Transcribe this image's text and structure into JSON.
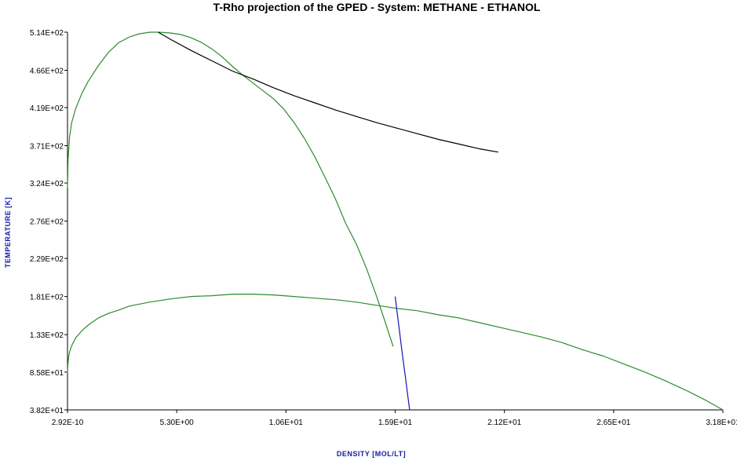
{
  "chart_data": {
    "type": "line",
    "title": "T-Rho projection of the GPED - System: METHANE - ETHANOL",
    "xlabel": "DENSITY [MOL/LT]",
    "ylabel": "TEMPERATURE [K]",
    "xlim": [
      2.92e-10,
      31.8
    ],
    "ylim": [
      38.2,
      514
    ],
    "x_ticks": [
      {
        "value": 2.92e-10,
        "label": "2.92E-10"
      },
      {
        "value": 5.3,
        "label": "5.30E+00"
      },
      {
        "value": 10.6,
        "label": "1.06E+01"
      },
      {
        "value": 15.9,
        "label": "1.59E+01"
      },
      {
        "value": 21.2,
        "label": "2.12E+01"
      },
      {
        "value": 26.5,
        "label": "2.65E+01"
      },
      {
        "value": 31.8,
        "label": "3.18E+01"
      }
    ],
    "y_ticks": [
      {
        "value": 514,
        "label": "5.14E+02"
      },
      {
        "value": 466,
        "label": "4.66E+02"
      },
      {
        "value": 419,
        "label": "4.19E+02"
      },
      {
        "value": 371,
        "label": "3.71E+02"
      },
      {
        "value": 324,
        "label": "3.24E+02"
      },
      {
        "value": 276,
        "label": "2.76E+02"
      },
      {
        "value": 229,
        "label": "2.29E+02"
      },
      {
        "value": 181,
        "label": "1.81E+02"
      },
      {
        "value": 133,
        "label": "1.33E+02"
      },
      {
        "value": 85.8,
        "label": "8.58E+01"
      },
      {
        "value": 38.2,
        "label": "3.82E+01"
      }
    ],
    "grid": false,
    "series": [
      {
        "color": "#2e8b2e",
        "x": [
          0.0,
          0.03,
          0.1,
          0.2,
          0.4,
          0.7,
          1.0,
          1.5,
          2.0,
          2.5,
          3.0,
          3.5,
          4.0,
          4.4,
          5.0,
          5.5,
          6.0,
          6.5,
          7.0,
          7.5,
          8.0,
          8.5,
          9.0,
          9.5,
          10.0,
          10.5,
          11.0,
          11.5,
          12.0,
          12.5,
          13.0,
          13.5,
          14.0,
          14.5,
          15.0,
          15.4,
          15.8
        ],
        "y": [
          318,
          355,
          382,
          400,
          418,
          437,
          452,
          472,
          489,
          501,
          508,
          512,
          514,
          514,
          513,
          511,
          507,
          501,
          493,
          483,
          471,
          460,
          450,
          440,
          430,
          417,
          400,
          380,
          357,
          331,
          304,
          273,
          248,
          217,
          181,
          150,
          118
        ]
      },
      {
        "color": "#000000",
        "x": [
          4.4,
          5.0,
          6.0,
          7.0,
          8.0,
          9.0,
          10.0,
          11.0,
          12.0,
          13.0,
          14.0,
          15.0,
          16.0,
          17.0,
          18.0,
          19.0,
          20.0,
          20.9
        ],
        "y": [
          514,
          505,
          491,
          478,
          465,
          455,
          444,
          434,
          425,
          416,
          408,
          400,
          393,
          386,
          379,
          373,
          367,
          363
        ]
      },
      {
        "color": "#2e8b2e",
        "x": [
          0.0,
          0.02,
          0.05,
          0.1,
          0.2,
          0.4,
          0.7,
          1.0,
          1.5,
          2.0,
          2.5,
          3.0,
          4.0,
          5.0,
          6.0,
          7.0,
          8.0,
          9.0,
          10.0,
          11.0,
          12.0,
          13.0,
          14.0,
          15.0,
          16.0,
          17.0,
          18.0,
          19.0,
          20.0,
          21.0,
          22.0,
          23.0,
          24.0,
          25.0,
          26.0,
          27.0,
          28.0,
          29.0,
          30.0,
          31.0,
          31.8
        ],
        "y": [
          85,
          95,
          104,
          111,
          119,
          129,
          138,
          145,
          154,
          160,
          164,
          169,
          174,
          178,
          181,
          182,
          184,
          184,
          183,
          181,
          179,
          177,
          174,
          170,
          166,
          163,
          158,
          154,
          148,
          142,
          136,
          130,
          123,
          114,
          106,
          96,
          86,
          75,
          63,
          50,
          38.2
        ]
      },
      {
        "color": "#1414b4",
        "x": [
          15.9,
          16.0,
          16.1,
          16.2,
          16.3,
          16.4,
          16.5,
          16.6
        ],
        "y": [
          181,
          160,
          139,
          118,
          98,
          79,
          58,
          38.2
        ]
      }
    ]
  }
}
